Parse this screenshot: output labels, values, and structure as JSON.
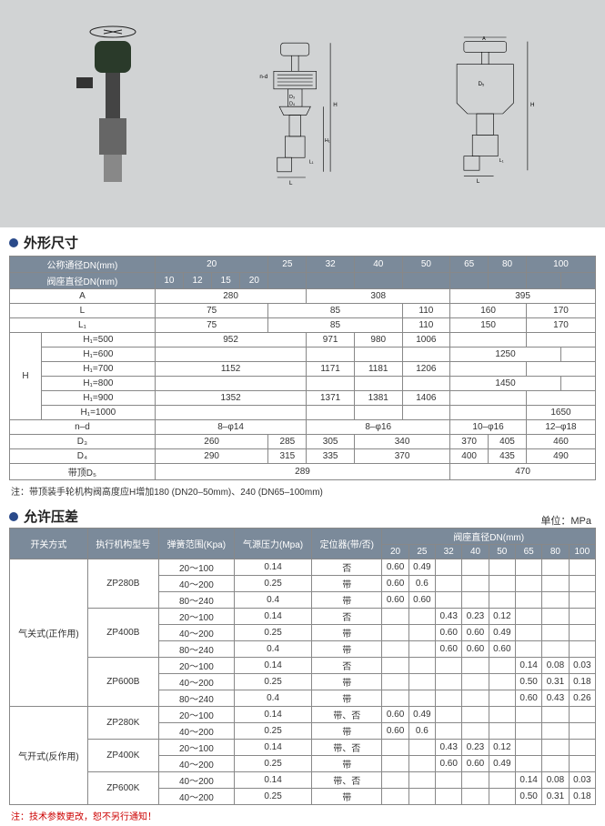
{
  "diagram_bg": "#d1d3d4",
  "sections": {
    "dims_title": "外形尺寸",
    "press_title": "允许压差"
  },
  "unit_label": "单位：MPa",
  "dims_table": {
    "row_labels": {
      "nominal_dia": "公称通径DN(mm)",
      "seat_dia": "阀座直径DN(mm)",
      "A": "A",
      "L": "L",
      "L1": "L₁",
      "H": "H",
      "H1_500": "H₁=500",
      "H1_600": "H₁=600",
      "H1_700": "H₁=700",
      "H1_800": "H₁=800",
      "H1_900": "H₁=900",
      "H1_1000": "H₁=1000",
      "n_d": "n–d",
      "D3": "D₃",
      "D4": "D₄",
      "D5": "带顶D₅"
    },
    "nominal": [
      "20",
      "25",
      "32",
      "40",
      "50",
      "65",
      "80",
      "100"
    ],
    "seat": [
      "10",
      "12",
      "15",
      "20",
      "",
      "",
      "",
      "",
      "",
      "",
      ""
    ],
    "A": [
      "280",
      "308",
      "395"
    ],
    "L": [
      "75",
      "85",
      "110",
      "160",
      "170"
    ],
    "L1": [
      "75",
      "85",
      "110",
      "150",
      "170"
    ],
    "H500": [
      "952",
      "971",
      "980",
      "1006",
      "",
      ""
    ],
    "H600": [
      "",
      "",
      "",
      "",
      "1250",
      ""
    ],
    "H700": [
      "1152",
      "1171",
      "1181",
      "1206",
      "",
      ""
    ],
    "H800": [
      "",
      "",
      "",
      "",
      "1450",
      ""
    ],
    "H900": [
      "1352",
      "1371",
      "1381",
      "1406",
      "",
      ""
    ],
    "H1000": [
      "",
      "",
      "",
      "",
      "",
      "1650"
    ],
    "nd": [
      "8–φ14",
      "8–φ16",
      "10–φ16",
      "12–φ18"
    ],
    "D3": [
      "260",
      "285",
      "305",
      "340",
      "370",
      "405",
      "460"
    ],
    "D4": [
      "290",
      "315",
      "335",
      "370",
      "400",
      "435",
      "490"
    ],
    "D5": [
      "289",
      "470"
    ]
  },
  "dims_note": "注：带顶装手轮机构阀高度应H增加180 (DN20–50mm)、240 (DN65–100mm)",
  "press_table": {
    "headers": {
      "switch": "开关方式",
      "actuator": "执行机构型号",
      "spring": "弹簧范围(Kpa)",
      "air": "气源压力(Mpa)",
      "positioner": "定位器(带/否)",
      "seat_dn": "阀座直径DN(mm)"
    },
    "dn_cols": [
      "20",
      "25",
      "32",
      "40",
      "50",
      "65",
      "80",
      "100"
    ],
    "groups": [
      {
        "mode": "气关式(正作用)",
        "rows": [
          {
            "model": "ZP280B",
            "spring": "20～100",
            "air": "0.14",
            "pos": "否",
            "v": [
              "0.60",
              "0.49",
              "",
              "",
              "",
              "",
              "",
              ""
            ]
          },
          {
            "model": "",
            "spring": "40～200",
            "air": "0.25",
            "pos": "带",
            "v": [
              "0.60",
              "0.6",
              "",
              "",
              "",
              "",
              "",
              ""
            ]
          },
          {
            "model": "",
            "spring": "80～240",
            "air": "0.4",
            "pos": "带",
            "v": [
              "0.60",
              "0.60",
              "",
              "",
              "",
              "",
              "",
              ""
            ]
          },
          {
            "model": "ZP400B",
            "spring": "20～100",
            "air": "0.14",
            "pos": "否",
            "v": [
              "",
              "",
              "0.43",
              "0.23",
              "0.12",
              "",
              "",
              ""
            ]
          },
          {
            "model": "",
            "spring": "40～200",
            "air": "0.25",
            "pos": "带",
            "v": [
              "",
              "",
              "0.60",
              "0.60",
              "0.49",
              "",
              "",
              ""
            ]
          },
          {
            "model": "",
            "spring": "80～240",
            "air": "0.4",
            "pos": "带",
            "v": [
              "",
              "",
              "0.60",
              "0.60",
              "0.60",
              "",
              "",
              ""
            ]
          },
          {
            "model": "ZP600B",
            "spring": "20～100",
            "air": "0.14",
            "pos": "否",
            "v": [
              "",
              "",
              "",
              "",
              "",
              "0.14",
              "0.08",
              "0.03"
            ]
          },
          {
            "model": "",
            "spring": "40～200",
            "air": "0.25",
            "pos": "带",
            "v": [
              "",
              "",
              "",
              "",
              "",
              "0.50",
              "0.31",
              "0.18"
            ]
          },
          {
            "model": "",
            "spring": "80～240",
            "air": "0.4",
            "pos": "带",
            "v": [
              "",
              "",
              "",
              "",
              "",
              "0.60",
              "0.43",
              "0.26"
            ]
          }
        ]
      },
      {
        "mode": "气开式(反作用)",
        "rows": [
          {
            "model": "ZP280K",
            "spring": "20～100",
            "air": "0.14",
            "pos": "带、否",
            "v": [
              "0.60",
              "0.49",
              "",
              "",
              "",
              "",
              "",
              ""
            ]
          },
          {
            "model": "",
            "spring": "40～200",
            "air": "0.25",
            "pos": "带",
            "v": [
              "0.60",
              "0.6",
              "",
              "",
              "",
              "",
              "",
              ""
            ]
          },
          {
            "model": "ZP400K",
            "spring": "20～100",
            "air": "0.14",
            "pos": "带、否",
            "v": [
              "",
              "",
              "0.43",
              "0.23",
              "0.12",
              "",
              "",
              ""
            ]
          },
          {
            "model": "",
            "spring": "40～200",
            "air": "0.25",
            "pos": "带",
            "v": [
              "",
              "",
              "0.60",
              "0.60",
              "0.49",
              "",
              "",
              ""
            ]
          },
          {
            "model": "ZP600K",
            "spring": "40～200",
            "air": "0.14",
            "pos": "带、否",
            "v": [
              "",
              "",
              "",
              "",
              "",
              "0.14",
              "0.08",
              "0.03"
            ]
          },
          {
            "model": "",
            "spring": "40～200",
            "air": "0.25",
            "pos": "带",
            "v": [
              "",
              "",
              "",
              "",
              "",
              "0.50",
              "0.31",
              "0.18"
            ]
          }
        ]
      }
    ]
  },
  "press_note": "注：技术参数更改，恕不另行通知！"
}
